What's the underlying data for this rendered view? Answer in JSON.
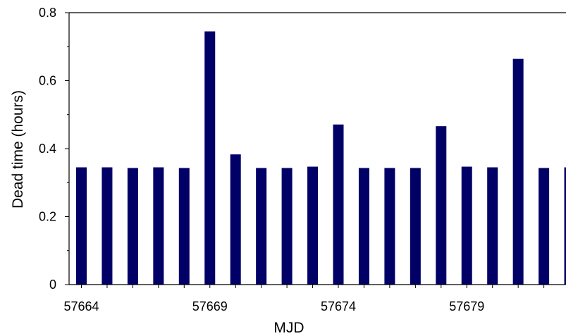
{
  "chart_data": {
    "type": "bar",
    "title": "",
    "xlabel": "MJD",
    "ylabel": "Dead time (hours)",
    "x": [
      57664,
      57665,
      57666,
      57667,
      57668,
      57669,
      57670,
      57671,
      57672,
      57673,
      57674,
      57675,
      57676,
      57677,
      57678,
      57679,
      57680,
      57681,
      57682,
      57683
    ],
    "values": [
      0.345,
      0.345,
      0.343,
      0.345,
      0.343,
      0.745,
      0.383,
      0.343,
      0.343,
      0.347,
      0.471,
      0.343,
      0.343,
      0.343,
      0.466,
      0.347,
      0.345,
      0.664,
      0.343,
      0.345
    ],
    "xticks": [
      57664,
      57669,
      57674,
      57679
    ],
    "yticks": [
      0,
      0.2,
      0.4,
      0.6,
      0.8
    ],
    "ytick_labels": [
      "0",
      "0.2",
      "0.4",
      "0.6",
      "0.8"
    ],
    "ylim": [
      0,
      0.8
    ],
    "grid": false,
    "legend": "none",
    "colors": {
      "bar": "#000066",
      "axis": "#000000"
    }
  }
}
